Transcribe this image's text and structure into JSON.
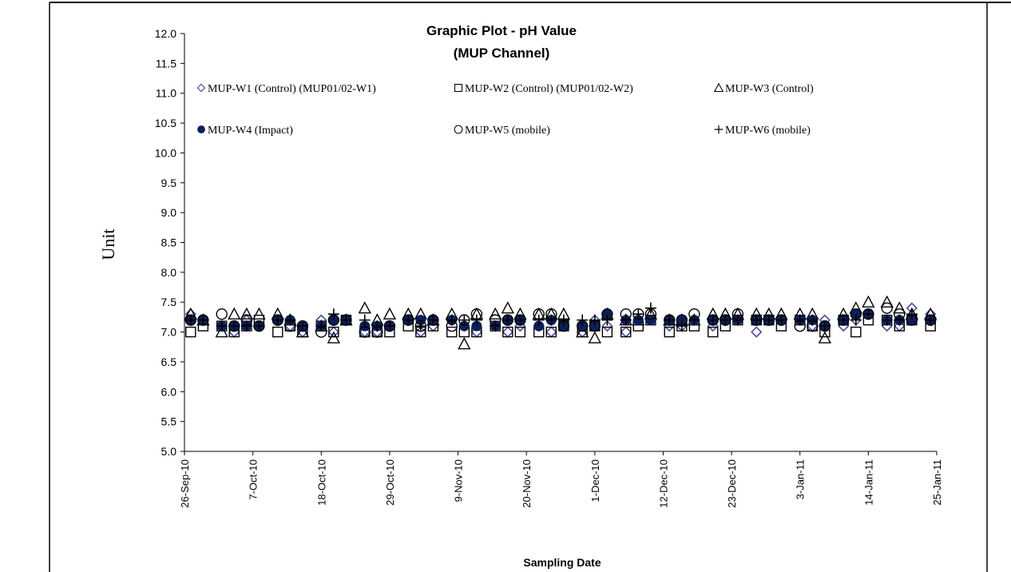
{
  "chart_data": {
    "type": "scatter",
    "title": "Graphic Plot - pH Value",
    "subtitle": "(MUP Channel)",
    "xlabel": "Sampling Date",
    "ylabel": "Unit",
    "ylim": [
      5.0,
      12.0
    ],
    "yticks": [
      "5.0",
      "5.5",
      "6.0",
      "6.5",
      "7.0",
      "7.5",
      "8.0",
      "8.5",
      "9.0",
      "9.5",
      "10.0",
      "10.5",
      "11.0",
      "11.5",
      "12.0"
    ],
    "xlim": [
      "2010-09-26",
      "2011-01-25"
    ],
    "xticks": [
      {
        "date": "2010-09-26",
        "label": "26-Sep-10"
      },
      {
        "date": "2010-10-07",
        "label": "7-Oct-10"
      },
      {
        "date": "2010-10-18",
        "label": "18-Oct-10"
      },
      {
        "date": "2010-10-29",
        "label": "29-Oct-10"
      },
      {
        "date": "2010-11-09",
        "label": "9-Nov-10"
      },
      {
        "date": "2010-11-20",
        "label": "20-Nov-10"
      },
      {
        "date": "2010-12-01",
        "label": "1-Dec-10"
      },
      {
        "date": "2010-12-12",
        "label": "12-Dec-10"
      },
      {
        "date": "2010-12-23",
        "label": "23-Dec-10"
      },
      {
        "date": "2011-01-03",
        "label": "3-Jan-11"
      },
      {
        "date": "2011-01-14",
        "label": "14-Jan-11"
      },
      {
        "date": "2011-01-25",
        "label": "25-Jan-11"
      }
    ],
    "grid": false,
    "legend_position": "top",
    "dates": [
      "2010-09-27",
      "2010-09-29",
      "2010-10-02",
      "2010-10-04",
      "2010-10-06",
      "2010-10-08",
      "2010-10-11",
      "2010-10-13",
      "2010-10-15",
      "2010-10-18",
      "2010-10-20",
      "2010-10-22",
      "2010-10-25",
      "2010-10-27",
      "2010-10-29",
      "2010-11-01",
      "2010-11-03",
      "2010-11-05",
      "2010-11-08",
      "2010-11-10",
      "2010-11-12",
      "2010-11-15",
      "2010-11-17",
      "2010-11-19",
      "2010-11-22",
      "2010-11-24",
      "2010-11-26",
      "2010-11-29",
      "2010-12-01",
      "2010-12-03",
      "2010-12-06",
      "2010-12-08",
      "2010-12-10",
      "2010-12-13",
      "2010-12-15",
      "2010-12-17",
      "2010-12-20",
      "2010-12-22",
      "2010-12-24",
      "2010-12-27",
      "2010-12-29",
      "2010-12-31",
      "2011-01-03",
      "2011-01-05",
      "2011-01-07",
      "2011-01-10",
      "2011-01-12",
      "2011-01-14",
      "2011-01-17",
      "2011-01-19",
      "2011-01-21",
      "2011-01-24"
    ],
    "series": [
      {
        "name": "MUP-W1 (Control) (MUP01/02-W1)",
        "marker": "diamond",
        "color": "#4b4b9c",
        "values": [
          7.3,
          7.2,
          7.1,
          7.0,
          7.2,
          7.1,
          7.2,
          7.1,
          7.0,
          7.2,
          7.0,
          7.2,
          7.0,
          7.0,
          7.1,
          7.2,
          7.0,
          7.1,
          7.2,
          7.1,
          7.0,
          7.1,
          7.0,
          7.1,
          7.1,
          7.0,
          7.1,
          7.0,
          7.2,
          7.1,
          7.0,
          7.2,
          7.2,
          7.1,
          7.1,
          7.2,
          7.1,
          7.2,
          7.2,
          7.0,
          7.2,
          7.2,
          7.2,
          7.1,
          7.2,
          7.1,
          7.2,
          7.3,
          7.1,
          7.1,
          7.4,
          7.3
        ]
      },
      {
        "name": "MUP-W2 (Control) (MUP01/02-W2)",
        "marker": "square",
        "color": "#000000",
        "values": [
          7.0,
          7.1,
          7.1,
          7.0,
          7.1,
          7.2,
          7.0,
          7.1,
          7.0,
          7.1,
          7.0,
          7.2,
          7.0,
          7.0,
          7.0,
          7.1,
          7.0,
          7.1,
          7.0,
          7.0,
          7.0,
          7.1,
          7.0,
          7.0,
          7.0,
          7.0,
          7.1,
          7.0,
          7.1,
          7.0,
          7.0,
          7.1,
          7.2,
          7.0,
          7.1,
          7.1,
          7.0,
          7.1,
          7.2,
          7.2,
          7.2,
          7.1,
          7.2,
          7.1,
          7.0,
          7.2,
          7.0,
          7.2,
          7.2,
          7.1,
          7.2,
          7.1
        ]
      },
      {
        "name": "MUP-W3 (Control)",
        "marker": "triangle",
        "color": "#000000",
        "values": [
          7.3,
          7.2,
          7.0,
          7.3,
          7.3,
          7.3,
          7.3,
          7.2,
          7.0,
          7.1,
          6.9,
          7.2,
          7.4,
          7.2,
          7.3,
          7.3,
          7.3,
          7.2,
          7.3,
          6.8,
          7.3,
          7.3,
          7.4,
          7.3,
          7.3,
          7.3,
          7.3,
          7.0,
          6.9,
          7.3,
          7.2,
          7.2,
          7.3,
          7.2,
          7.2,
          7.2,
          7.3,
          7.3,
          7.3,
          7.3,
          7.3,
          7.3,
          7.3,
          7.3,
          6.9,
          7.3,
          7.4,
          7.5,
          7.5,
          7.4,
          7.3,
          7.3
        ]
      },
      {
        "name": "MUP-W4 (Impact)",
        "marker": "circle-filled",
        "color": "#0b1e5b",
        "values": [
          7.2,
          7.2,
          7.1,
          7.1,
          7.1,
          7.1,
          7.2,
          7.2,
          7.1,
          7.1,
          7.2,
          7.2,
          7.1,
          7.1,
          7.1,
          7.2,
          7.2,
          7.2,
          7.2,
          7.1,
          7.1,
          7.1,
          7.2,
          7.2,
          7.1,
          7.2,
          7.1,
          7.1,
          7.1,
          7.3,
          7.2,
          7.2,
          7.2,
          7.2,
          7.2,
          7.2,
          7.2,
          7.2,
          7.2,
          7.2,
          7.2,
          7.2,
          7.2,
          7.2,
          7.1,
          7.2,
          7.3,
          7.3,
          7.2,
          7.2,
          7.2,
          7.2
        ]
      },
      {
        "name": "MUP-W5 (mobile)",
        "marker": "circle-open",
        "color": "#000000",
        "values": [
          7.2,
          7.2,
          7.3,
          7.1,
          7.2,
          7.1,
          7.2,
          7.1,
          7.1,
          7.0,
          7.2,
          7.2,
          7.0,
          7.0,
          7.1,
          7.2,
          7.1,
          7.2,
          7.1,
          7.2,
          7.3,
          7.2,
          7.2,
          7.2,
          7.3,
          7.3,
          7.1,
          7.1,
          7.1,
          7.3,
          7.3,
          7.3,
          7.3,
          7.2,
          7.2,
          7.3,
          7.2,
          7.2,
          7.3,
          7.2,
          7.2,
          7.2,
          7.1,
          7.1,
          7.1,
          7.2,
          7.3,
          7.3,
          7.4,
          7.3,
          7.2,
          7.2
        ]
      },
      {
        "name": "MUP-W6 (mobile)",
        "marker": "plus",
        "color": "#000000",
        "values": [
          7.2,
          7.2,
          7.1,
          7.1,
          7.1,
          7.1,
          7.2,
          7.2,
          7.1,
          7.1,
          7.3,
          7.2,
          7.2,
          7.1,
          7.1,
          7.2,
          7.1,
          7.2,
          7.2,
          7.2,
          7.2,
          7.1,
          7.2,
          7.2,
          7.2,
          7.2,
          7.2,
          7.2,
          7.2,
          7.2,
          7.2,
          7.3,
          7.4,
          7.2,
          7.1,
          7.2,
          7.2,
          7.2,
          7.2,
          7.2,
          7.2,
          7.2,
          7.2,
          7.2,
          7.1,
          7.2,
          7.2,
          7.3,
          7.2,
          7.2,
          7.3,
          7.2
        ]
      }
    ]
  }
}
